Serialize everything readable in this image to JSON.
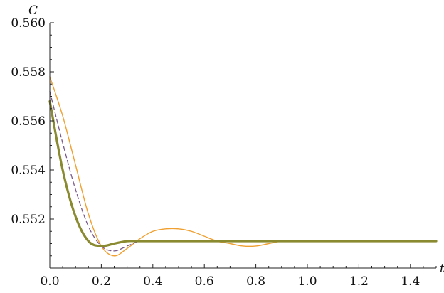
{
  "chart_data": {
    "type": "line",
    "title": "",
    "xlabel": "t",
    "ylabel": "C",
    "xlim": [
      0,
      1.5
    ],
    "ylim": [
      0.55,
      0.56
    ],
    "xticks": [
      "0.0",
      "0.2",
      "0.4",
      "0.6",
      "0.8",
      "1.0",
      "1.2",
      "1.4"
    ],
    "xtick_values": [
      0.0,
      0.2,
      0.4,
      0.6,
      0.8,
      1.0,
      1.2,
      1.4
    ],
    "yticks": [
      "0.552",
      "0.554",
      "0.556",
      "0.558",
      "0.560"
    ],
    "ytick_values": [
      0.552,
      0.554,
      0.556,
      0.558,
      0.56
    ],
    "grid": false,
    "legend": "none",
    "series": [
      {
        "color": "#f0a030",
        "style": "thin solid",
        "x": [
          0.0,
          0.05,
          0.1,
          0.15,
          0.2,
          0.25,
          0.3,
          0.35,
          0.4,
          0.45,
          0.5,
          0.55,
          0.6,
          0.65,
          0.7,
          0.75,
          0.8,
          0.85,
          0.9,
          0.95,
          1.0,
          1.05,
          1.1,
          1.2,
          1.3,
          1.4,
          1.5
        ],
        "y": [
          0.5578,
          0.5562,
          0.5542,
          0.5522,
          0.5509,
          0.5505,
          0.5508,
          0.5512,
          0.5515,
          0.5516,
          0.5516,
          0.5515,
          0.5513,
          0.5511,
          0.551,
          0.5509,
          0.5509,
          0.551,
          0.5511,
          0.5511,
          0.5511,
          0.5511,
          0.5511,
          0.5511,
          0.5511,
          0.5511,
          0.5511
        ]
      },
      {
        "color": "#7a5a8a",
        "style": "dashed",
        "x": [
          0.0,
          0.05,
          0.1,
          0.15,
          0.2,
          0.25,
          0.3,
          0.35,
          0.4,
          0.5,
          0.6,
          0.7,
          0.8,
          1.0,
          1.2,
          1.5
        ],
        "y": [
          0.5572,
          0.5551,
          0.5532,
          0.5517,
          0.5509,
          0.5507,
          0.5509,
          0.5511,
          0.5511,
          0.5511,
          0.5511,
          0.5511,
          0.5511,
          0.5511,
          0.5511,
          0.5511
        ]
      },
      {
        "color": "#8a8a30",
        "style": "thick solid",
        "x": [
          0.0,
          0.05,
          0.1,
          0.15,
          0.2,
          0.25,
          0.3,
          0.35,
          0.4,
          0.5,
          0.6,
          0.8,
          1.0,
          1.2,
          1.5
        ],
        "y": [
          0.5568,
          0.554,
          0.5521,
          0.5511,
          0.5509,
          0.551,
          0.5511,
          0.5511,
          0.5511,
          0.5511,
          0.5511,
          0.5511,
          0.5511,
          0.5511,
          0.5511
        ]
      }
    ]
  }
}
